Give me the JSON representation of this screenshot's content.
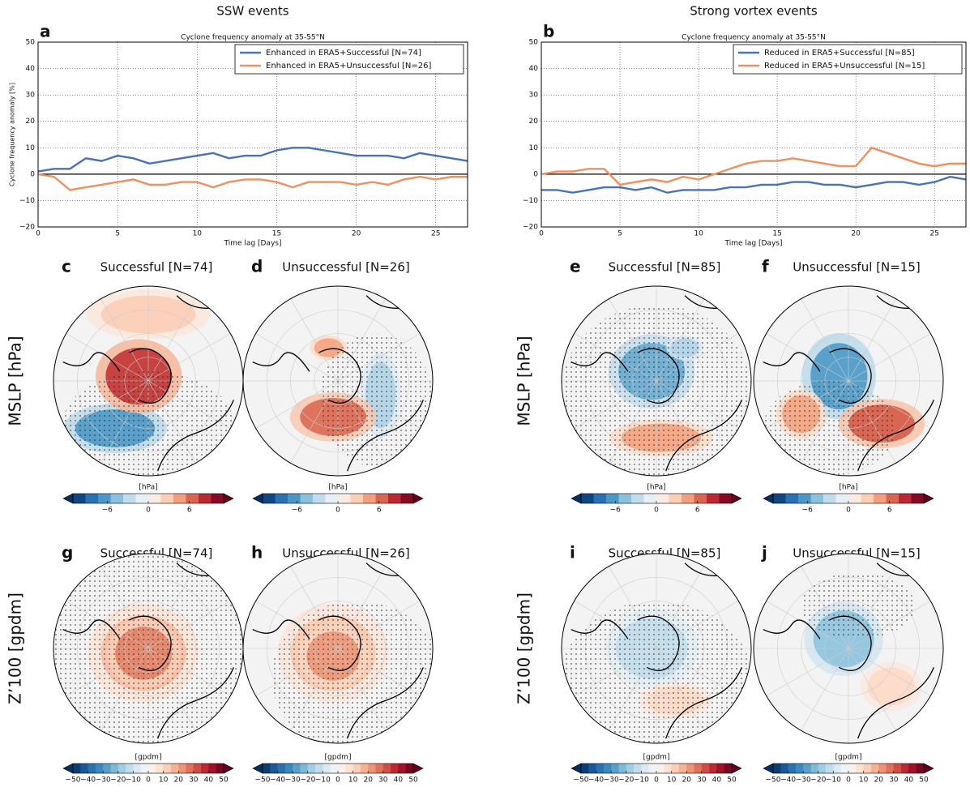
{
  "columns": [
    "SSW events",
    "Strong vortex events"
  ],
  "rows": [
    "MSLP [hPa]",
    "Z’100 [gpdm]"
  ],
  "chart_data": [
    {
      "type": "line",
      "letter": "a",
      "title": "Cyclone frequency anomaly at 35-55°N",
      "x_label": "Time lag [Days]",
      "y_label": "Cyclone frequency anomaly [%]",
      "x": [
        0,
        1,
        2,
        3,
        4,
        5,
        6,
        7,
        8,
        9,
        10,
        11,
        12,
        13,
        14,
        15,
        16,
        17,
        18,
        19,
        20,
        21,
        22,
        23,
        24,
        25,
        26,
        27
      ],
      "series": [
        {
          "name": "Enhanced in ERA5+Successful [N=74]",
          "color": "#4a72b5",
          "values": [
            1,
            2,
            2,
            6,
            5,
            7,
            6,
            4,
            5,
            6,
            7,
            8,
            6,
            7,
            7,
            9,
            10,
            10,
            9,
            8,
            7,
            7,
            7,
            6,
            8,
            7,
            6,
            5
          ]
        },
        {
          "name": "Enhanced in ERA5+Unsuccessful [N=26]",
          "color": "#f0905e",
          "values": [
            0,
            -1,
            -6,
            -5,
            -4,
            -3,
            -2,
            -4,
            -4,
            -3,
            -3,
            -5,
            -3,
            -2,
            -2,
            -3,
            -5,
            -3,
            -3,
            -3,
            -4,
            -3,
            -4,
            -2,
            -1,
            -2,
            -1,
            -1
          ]
        }
      ],
      "xlim": [
        0,
        27
      ],
      "xticks": [
        0,
        5,
        10,
        15,
        20,
        25
      ],
      "ylim": [
        -20,
        50
      ],
      "yticks": [
        {
          "value": -20,
          "label": "−20"
        },
        {
          "value": -10,
          "label": "−10"
        },
        0,
        10,
        20,
        30,
        40,
        50
      ],
      "grid": true,
      "legend": "upper right"
    },
    {
      "type": "line",
      "letter": "b",
      "title": "Cyclone frequency anomaly at 35-55°N",
      "x_label": "Time lag [Days]",
      "y_label": null,
      "x": [
        0,
        1,
        2,
        3,
        4,
        5,
        6,
        7,
        8,
        9,
        10,
        11,
        12,
        13,
        14,
        15,
        16,
        17,
        18,
        19,
        20,
        21,
        22,
        23,
        24,
        25,
        26,
        27
      ],
      "series": [
        {
          "name": "Reduced in ERA5+Successful [N=85]",
          "color": "#4a72b5",
          "values": [
            -6,
            -6,
            -7,
            -6,
            -5,
            -5,
            -6,
            -5,
            -7,
            -6,
            -6,
            -6,
            -5,
            -5,
            -4,
            -4,
            -3,
            -3,
            -4,
            -4,
            -5,
            -4,
            -3,
            -3,
            -4,
            -3,
            -1,
            -2
          ]
        },
        {
          "name": "Reduced in ERA5+Unsuccessful [N=15]",
          "color": "#f0905e",
          "values": [
            0,
            1,
            1,
            2,
            2,
            -4,
            -3,
            -2,
            -3,
            -1,
            -2,
            0,
            2,
            4,
            5,
            5,
            6,
            5,
            4,
            3,
            3,
            10,
            8,
            6,
            4,
            3,
            4,
            4
          ]
        }
      ],
      "xlim": [
        0,
        27
      ],
      "xticks": [
        0,
        5,
        10,
        15,
        20,
        25
      ],
      "ylim": [
        -20,
        50
      ],
      "yticks": [
        {
          "value": -20,
          "label": "−20"
        },
        {
          "value": -10,
          "label": "−10"
        },
        0,
        10,
        20,
        30,
        40,
        50
      ],
      "grid": true,
      "legend": "upper right"
    }
  ],
  "maps": [
    {
      "letter": "c",
      "title": "Successful [N=74]",
      "unit": "[hPa]",
      "clim": [
        -11,
        11
      ],
      "ticks": [
        {
          "value": -6,
          "label": "−6"
        },
        0,
        6
      ]
    },
    {
      "letter": "d",
      "title": "Unsuccessful [N=26]",
      "unit": "[hPa]",
      "clim": [
        -11,
        11
      ],
      "ticks": [
        {
          "value": -6,
          "label": "−6"
        },
        0,
        6
      ]
    },
    {
      "letter": "e",
      "title": "Successful [N=85]",
      "unit": "[hPa]",
      "clim": [
        -11,
        11
      ],
      "ticks": [
        {
          "value": -6,
          "label": "−6"
        },
        0,
        6
      ]
    },
    {
      "letter": "f",
      "title": "Unsuccessful [N=15]",
      "unit": "[hPa]",
      "clim": [
        -11,
        11
      ],
      "ticks": [
        {
          "value": -6,
          "label": "−6"
        },
        0,
        6
      ]
    },
    {
      "letter": "g",
      "title": "Successful [N=74]",
      "unit": "[gpdm]",
      "clim": [
        -50,
        50
      ],
      "ticks": [
        {
          "value": -50,
          "label": "−50"
        },
        {
          "value": -40,
          "label": "−40"
        },
        {
          "value": -30,
          "label": "−30"
        },
        {
          "value": -20,
          "label": "−20"
        },
        {
          "value": -10,
          "label": "−10"
        },
        0,
        10,
        20,
        30,
        40,
        50
      ]
    },
    {
      "letter": "h",
      "title": "Unsuccessful [N=26]",
      "unit": "[gpdm]",
      "clim": [
        -50,
        50
      ],
      "ticks": [
        {
          "value": -50,
          "label": "−50"
        },
        {
          "value": -40,
          "label": "−40"
        },
        {
          "value": -30,
          "label": "−30"
        },
        {
          "value": -20,
          "label": "−20"
        },
        {
          "value": -10,
          "label": "−10"
        },
        0,
        10,
        20,
        30,
        40,
        50
      ]
    },
    {
      "letter": "i",
      "title": "Successful [N=85]",
      "unit": "[gpdm]",
      "clim": [
        -50,
        50
      ],
      "ticks": [
        {
          "value": -50,
          "label": "−50"
        },
        {
          "value": -40,
          "label": "−40"
        },
        {
          "value": -30,
          "label": "−30"
        },
        {
          "value": -20,
          "label": "−20"
        },
        {
          "value": -10,
          "label": "−10"
        },
        0,
        10,
        20,
        30,
        40,
        50
      ]
    },
    {
      "letter": "j",
      "title": "Unsuccessful [N=15]",
      "unit": "[gpdm]",
      "clim": [
        -50,
        50
      ],
      "ticks": [
        {
          "value": -50,
          "label": "−50"
        },
        {
          "value": -40,
          "label": "−40"
        },
        {
          "value": -30,
          "label": "−30"
        },
        {
          "value": -20,
          "label": "−20"
        },
        {
          "value": -10,
          "label": "−10"
        },
        0,
        10,
        20,
        30,
        40,
        50
      ]
    }
  ]
}
